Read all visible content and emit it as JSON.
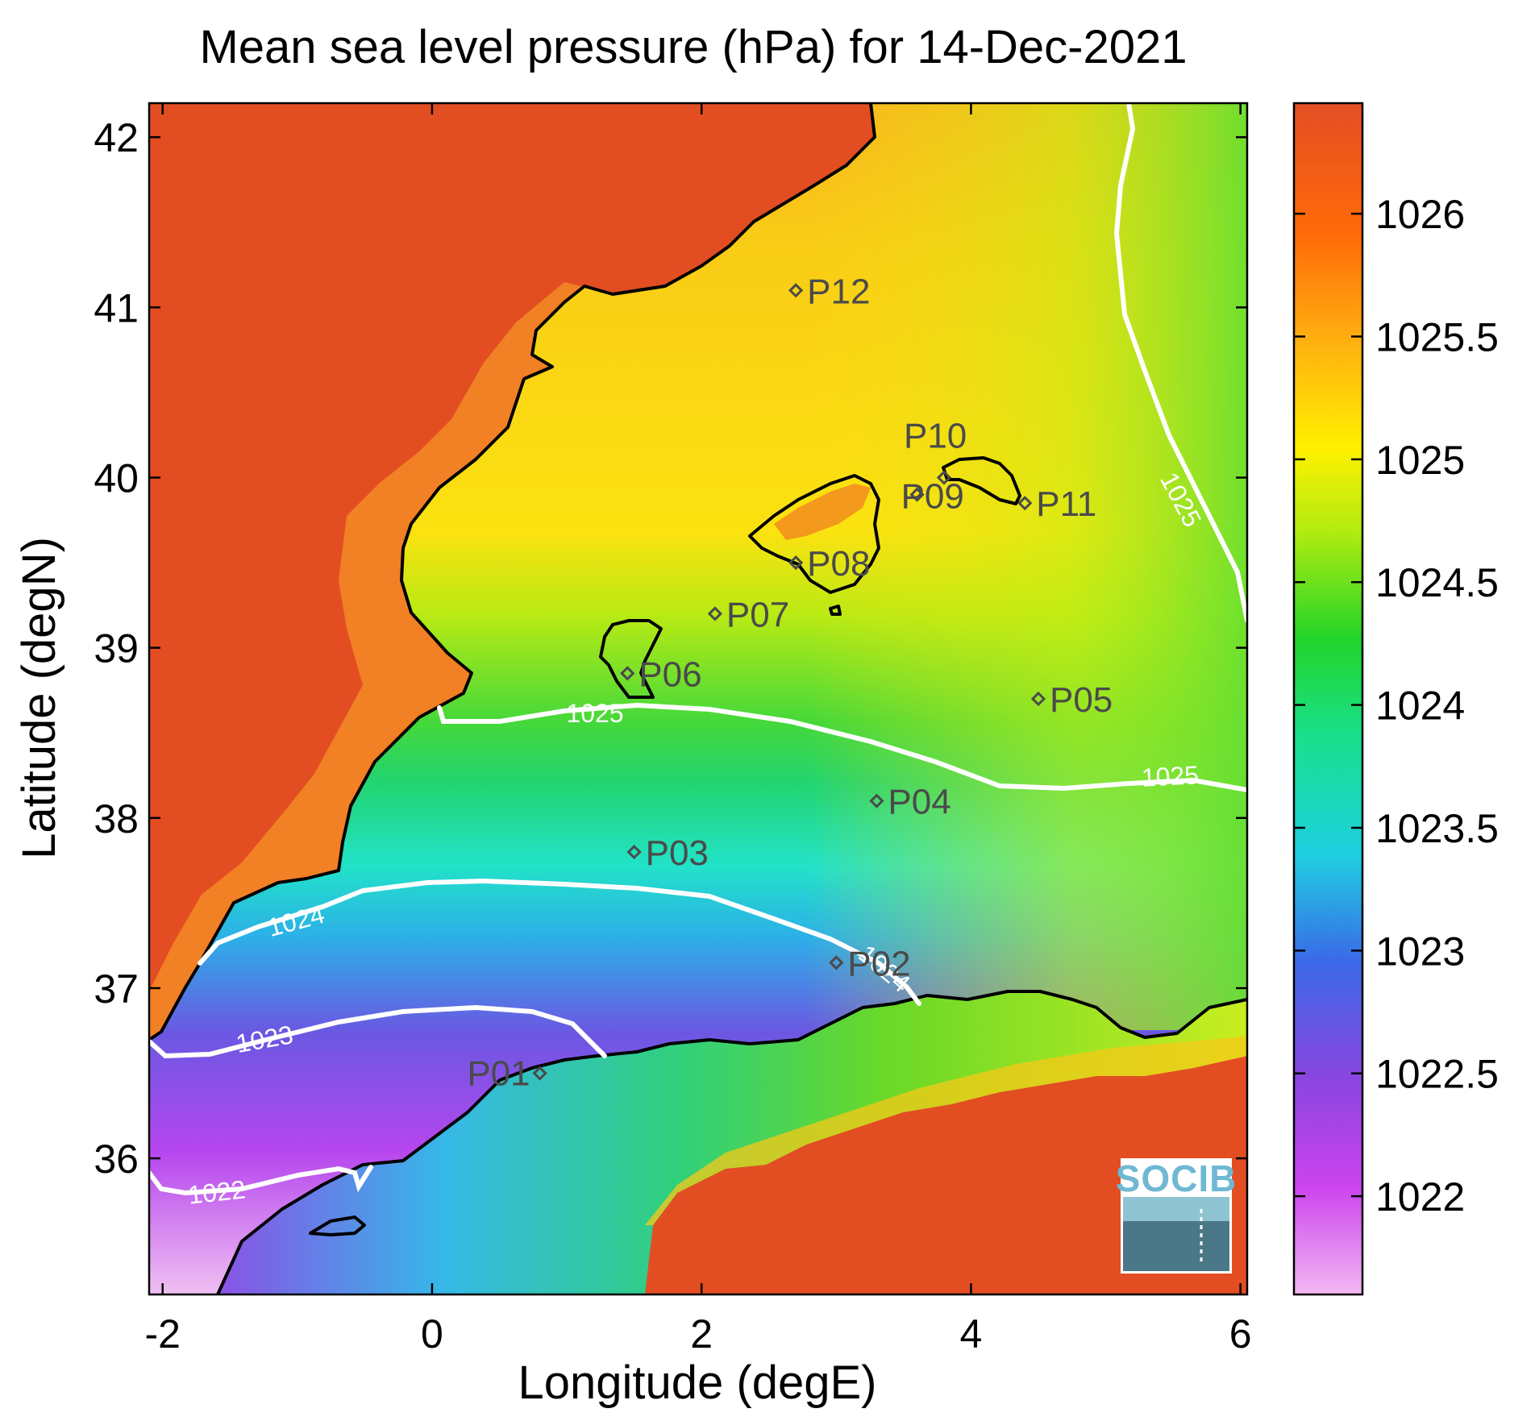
{
  "title": "Mean sea level pressure (hPa) for 14-Dec-2021",
  "xlabel": "Longitude (degE)",
  "ylabel": "Latitude (degN)",
  "xticks": [
    "-2",
    "0",
    "2",
    "4",
    "6"
  ],
  "yticks": [
    "42",
    "41",
    "40",
    "39",
    "38",
    "37",
    "36"
  ],
  "colorbar": {
    "labels": [
      "1026",
      "1025.5",
      "1025",
      "1024.5",
      "1024",
      "1023.5",
      "1023",
      "1022.5",
      "1022"
    ],
    "colors": [
      "#f2b8f2",
      "#cc44ee",
      "#8b45e0",
      "#3a6ae8",
      "#1ed0e0",
      "#19e08a",
      "#22d42a",
      "#b0ec10",
      "#fff000",
      "#ffb010",
      "#ff6a08",
      "#e44e24"
    ]
  },
  "contours": {
    "labels": [
      "1025",
      "1025",
      "1025",
      "1024",
      "1024",
      "1023",
      "1022"
    ],
    "color": "#ffffff"
  },
  "stations": [
    {
      "name": "P01",
      "lon": 0.8,
      "lat": 36.5
    },
    {
      "name": "P02",
      "lon": 3.0,
      "lat": 37.15
    },
    {
      "name": "P03",
      "lon": 1.5,
      "lat": 37.8
    },
    {
      "name": "P04",
      "lon": 3.3,
      "lat": 38.1
    },
    {
      "name": "P05",
      "lon": 4.5,
      "lat": 38.7
    },
    {
      "name": "P06",
      "lon": 1.45,
      "lat": 38.85
    },
    {
      "name": "P07",
      "lon": 2.1,
      "lat": 39.2
    },
    {
      "name": "P08",
      "lon": 2.7,
      "lat": 39.5
    },
    {
      "name": "P09",
      "lon": 3.6,
      "lat": 39.9
    },
    {
      "name": "P10",
      "lon": 3.8,
      "lat": 40.0
    },
    {
      "name": "P11",
      "lon": 4.4,
      "lat": 39.85
    },
    {
      "name": "P12",
      "lon": 2.7,
      "lat": 41.1
    }
  ],
  "logo": {
    "text": "SOCIB"
  }
}
